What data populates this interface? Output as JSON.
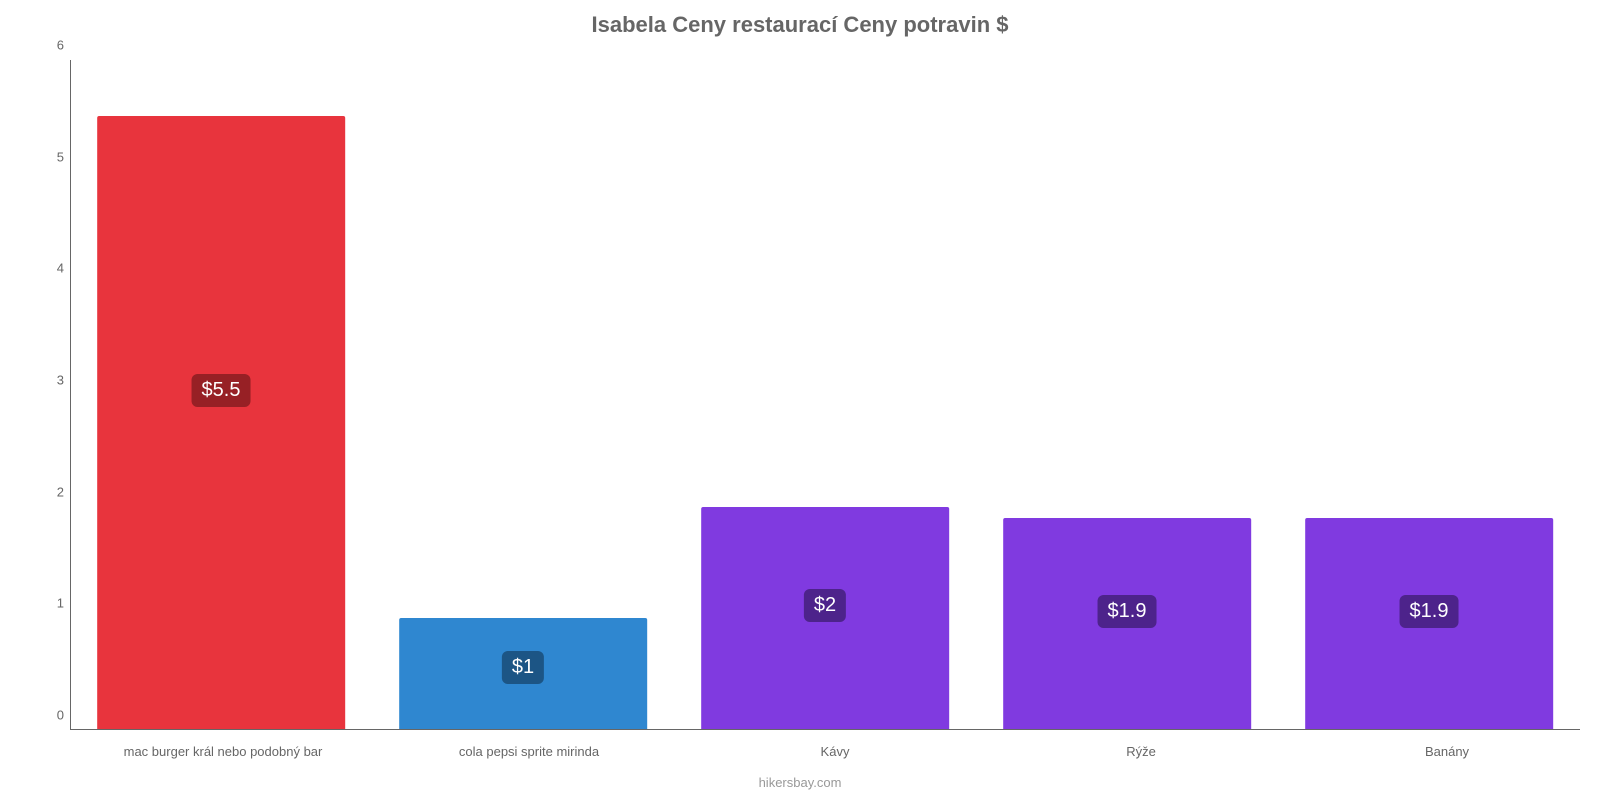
{
  "chart": {
    "type": "bar",
    "title": "Isabela Ceny restaurací Ceny potravin $",
    "title_fontsize": 22,
    "title_color": "#666666",
    "attribution": "hikersbay.com",
    "attribution_color": "#999999",
    "background_color": "#ffffff",
    "axis_color": "#666666",
    "tick_fontsize": 13,
    "xlabel_fontsize": 13,
    "ylim": [
      0,
      6
    ],
    "yticks": [
      0,
      1,
      2,
      3,
      4,
      5,
      6
    ],
    "bar_width_pct": 82,
    "value_label_fontsize": 20,
    "categories": [
      "mac burger král nebo podobný bar",
      "cola pepsi sprite mirinda",
      "Kávy",
      "Rýže",
      "Banány"
    ],
    "values": [
      5.5,
      1,
      2,
      1.9,
      1.9
    ],
    "value_labels": [
      "$5.5",
      "$1",
      "$2",
      "$1.9",
      "$1.9"
    ],
    "bar_colors": [
      "#e8343d",
      "#2f87d0",
      "#803ae0",
      "#803ae0",
      "#803ae0"
    ],
    "label_bg_colors": [
      "#972025",
      "#1c5585",
      "#4d238b",
      "#4d238b",
      "#4d238b"
    ]
  }
}
